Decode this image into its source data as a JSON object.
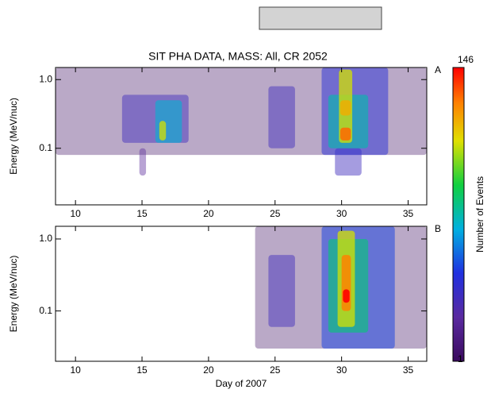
{
  "chart_data": [
    {
      "type": "heatmap",
      "title": "SIT PHA DATA, MASS: All, CR 2052",
      "panel": "A",
      "ylabel": "Energy (MeV/nuc)",
      "xlim": [
        8.5,
        36.4
      ],
      "xticks": [
        10,
        15,
        20,
        25,
        30,
        35
      ],
      "ylim": [
        0.015,
        1.5
      ],
      "yticks": [
        0.1,
        {
          "value": 1,
          "label": "1.0"
        }
      ],
      "ylog": true,
      "cells": [
        {
          "x": [
            8.5,
            36.4
          ],
          "y": [
            0.08,
            1.5
          ],
          "count": 1
        },
        {
          "x": [
            14.8,
            15.3
          ],
          "y": [
            0.04,
            0.1
          ],
          "count": 2
        },
        {
          "x": [
            29.5,
            31.5
          ],
          "y": [
            0.04,
            0.1
          ],
          "count": 3
        },
        {
          "x": [
            13.5,
            18.5
          ],
          "y": [
            0.12,
            0.6
          ],
          "count": 3
        },
        {
          "x": [
            16,
            18
          ],
          "y": [
            0.12,
            0.5
          ],
          "count": 10
        },
        {
          "x": [
            16.3,
            16.8
          ],
          "y": [
            0.13,
            0.25
          ],
          "count": 40
        },
        {
          "x": [
            24.5,
            26.5
          ],
          "y": [
            0.1,
            0.8
          ],
          "count": 3
        },
        {
          "x": [
            28.5,
            33.5
          ],
          "y": [
            0.08,
            1.5
          ],
          "count": 4
        },
        {
          "x": [
            29,
            32
          ],
          "y": [
            0.1,
            0.6
          ],
          "count": 12
        },
        {
          "x": [
            29.8,
            30.8
          ],
          "y": [
            0.12,
            1.4
          ],
          "count": 40
        },
        {
          "x": [
            29.9,
            30.7
          ],
          "y": [
            0.3,
            0.5
          ],
          "count": 60
        },
        {
          "x": [
            29.9,
            30.7
          ],
          "y": [
            0.13,
            0.2
          ],
          "count": 90
        }
      ]
    },
    {
      "type": "heatmap",
      "panel": "B",
      "ylabel": "Energy (MeV/nuc)",
      "xlabel": "Day of 2007",
      "xlim": [
        8.5,
        36.4
      ],
      "xticks": [
        10,
        15,
        20,
        25,
        30,
        35
      ],
      "ylim": [
        0.02,
        1.5
      ],
      "yticks": [
        0.1,
        {
          "value": 1,
          "label": "1.0"
        }
      ],
      "ylog": true,
      "cells": [
        {
          "x": [
            23.5,
            36.4
          ],
          "y": [
            0.03,
            1.5
          ],
          "count": 1
        },
        {
          "x": [
            24.5,
            26.5
          ],
          "y": [
            0.06,
            0.6
          ],
          "count": 3
        },
        {
          "x": [
            28.5,
            34
          ],
          "y": [
            0.03,
            1.5
          ],
          "count": 5
        },
        {
          "x": [
            29,
            32
          ],
          "y": [
            0.05,
            1.0
          ],
          "count": 15
        },
        {
          "x": [
            29.7,
            31
          ],
          "y": [
            0.06,
            1.3
          ],
          "count": 40
        },
        {
          "x": [
            30,
            30.7
          ],
          "y": [
            0.1,
            0.6
          ],
          "count": 80
        },
        {
          "x": [
            30.1,
            30.6
          ],
          "y": [
            0.13,
            0.2
          ],
          "count": 146
        }
      ]
    }
  ],
  "colorbar": {
    "label": "Number of Events",
    "lim": [
      1,
      146
    ],
    "ticks": [
      1,
      146
    ],
    "log": true
  }
}
